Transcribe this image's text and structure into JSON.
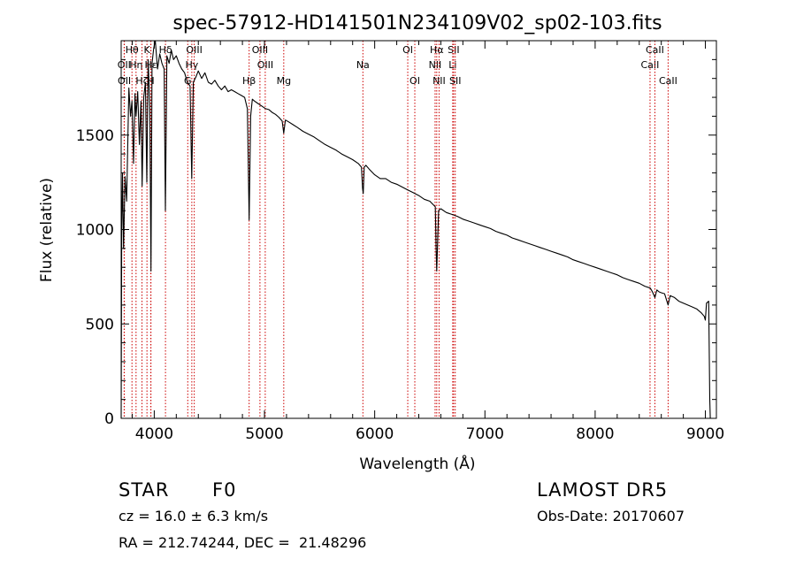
{
  "chart_data": {
    "type": "line",
    "title": "spec-57912-HD141501N234109V02_sp02-103.fits",
    "xlabel": "Wavelength (Å)",
    "ylabel": "Flux (relative)",
    "xlim": [
      3700,
      9100
    ],
    "ylim": [
      0,
      2000
    ],
    "xticks": [
      4000,
      5000,
      6000,
      7000,
      8000,
      9000
    ],
    "xtick_labels": [
      "4000",
      "5000",
      "6000",
      "7000",
      "8000",
      "9000"
    ],
    "yticks": [
      0,
      500,
      1000,
      1500
    ],
    "ytick_labels": [
      "0",
      "500",
      "1000",
      "1500"
    ],
    "grid": false,
    "line_color": "#000000",
    "marker_color": "#cc0000",
    "series": [
      {
        "points": [
          [
            3700,
            0
          ],
          [
            3705,
            1000
          ],
          [
            3712,
            1300
          ],
          [
            3722,
            900
          ],
          [
            3735,
            1280
          ],
          [
            3750,
            1150
          ],
          [
            3770,
            1750
          ],
          [
            3785,
            1600
          ],
          [
            3798,
            1680
          ],
          [
            3812,
            1350
          ],
          [
            3825,
            1720
          ],
          [
            3835,
            1600
          ],
          [
            3850,
            1730
          ],
          [
            3865,
            1450
          ],
          [
            3880,
            1680
          ],
          [
            3890,
            1230
          ],
          [
            3905,
            1700
          ],
          [
            3920,
            1780
          ],
          [
            3933,
            1250
          ],
          [
            3945,
            1900
          ],
          [
            3960,
            1650
          ],
          [
            3970,
            780
          ],
          [
            3980,
            1880
          ],
          [
            3995,
            1960
          ],
          [
            4010,
            2000
          ],
          [
            4030,
            1850
          ],
          [
            4050,
            1930
          ],
          [
            4070,
            1880
          ],
          [
            4090,
            1850
          ],
          [
            4101,
            1100
          ],
          [
            4115,
            1920
          ],
          [
            4135,
            1880
          ],
          [
            4155,
            1950
          ],
          [
            4175,
            1900
          ],
          [
            4200,
            1920
          ],
          [
            4225,
            1880
          ],
          [
            4250,
            1850
          ],
          [
            4275,
            1830
          ],
          [
            4300,
            1780
          ],
          [
            4325,
            1760
          ],
          [
            4340,
            1270
          ],
          [
            4355,
            1780
          ],
          [
            4380,
            1810
          ],
          [
            4400,
            1840
          ],
          [
            4430,
            1800
          ],
          [
            4460,
            1830
          ],
          [
            4490,
            1780
          ],
          [
            4520,
            1770
          ],
          [
            4550,
            1790
          ],
          [
            4580,
            1760
          ],
          [
            4610,
            1740
          ],
          [
            4640,
            1760
          ],
          [
            4670,
            1730
          ],
          [
            4700,
            1740
          ],
          [
            4730,
            1730
          ],
          [
            4760,
            1720
          ],
          [
            4790,
            1710
          ],
          [
            4820,
            1700
          ],
          [
            4845,
            1640
          ],
          [
            4861,
            1050
          ],
          [
            4875,
            1600
          ],
          [
            4890,
            1690
          ],
          [
            4910,
            1680
          ],
          [
            4935,
            1670
          ],
          [
            4960,
            1660
          ],
          [
            4985,
            1650
          ],
          [
            5010,
            1640
          ],
          [
            5040,
            1635
          ],
          [
            5070,
            1620
          ],
          [
            5100,
            1610
          ],
          [
            5130,
            1595
          ],
          [
            5160,
            1575
          ],
          [
            5175,
            1510
          ],
          [
            5190,
            1580
          ],
          [
            5220,
            1570
          ],
          [
            5260,
            1555
          ],
          [
            5300,
            1540
          ],
          [
            5350,
            1520
          ],
          [
            5400,
            1505
          ],
          [
            5450,
            1490
          ],
          [
            5500,
            1470
          ],
          [
            5550,
            1450
          ],
          [
            5600,
            1435
          ],
          [
            5650,
            1420
          ],
          [
            5700,
            1400
          ],
          [
            5750,
            1385
          ],
          [
            5800,
            1370
          ],
          [
            5850,
            1350
          ],
          [
            5880,
            1330
          ],
          [
            5890,
            1220
          ],
          [
            5896,
            1190
          ],
          [
            5905,
            1330
          ],
          [
            5920,
            1340
          ],
          [
            5950,
            1320
          ],
          [
            6000,
            1290
          ],
          [
            6050,
            1270
          ],
          [
            6100,
            1270
          ],
          [
            6150,
            1250
          ],
          [
            6200,
            1240
          ],
          [
            6250,
            1225
          ],
          [
            6300,
            1210
          ],
          [
            6350,
            1195
          ],
          [
            6400,
            1180
          ],
          [
            6450,
            1160
          ],
          [
            6500,
            1150
          ],
          [
            6550,
            1120
          ],
          [
            6557,
            900
          ],
          [
            6563,
            780
          ],
          [
            6569,
            900
          ],
          [
            6580,
            1100
          ],
          [
            6600,
            1110
          ],
          [
            6650,
            1090
          ],
          [
            6700,
            1080
          ],
          [
            6750,
            1070
          ],
          [
            6800,
            1055
          ],
          [
            6850,
            1045
          ],
          [
            6900,
            1035
          ],
          [
            6950,
            1025
          ],
          [
            7000,
            1015
          ],
          [
            7050,
            1005
          ],
          [
            7100,
            990
          ],
          [
            7150,
            980
          ],
          [
            7200,
            970
          ],
          [
            7250,
            955
          ],
          [
            7300,
            945
          ],
          [
            7350,
            935
          ],
          [
            7400,
            925
          ],
          [
            7450,
            915
          ],
          [
            7500,
            905
          ],
          [
            7550,
            895
          ],
          [
            7600,
            885
          ],
          [
            7650,
            875
          ],
          [
            7700,
            865
          ],
          [
            7750,
            855
          ],
          [
            7800,
            840
          ],
          [
            7850,
            830
          ],
          [
            7900,
            820
          ],
          [
            7950,
            810
          ],
          [
            8000,
            800
          ],
          [
            8050,
            790
          ],
          [
            8100,
            780
          ],
          [
            8150,
            770
          ],
          [
            8200,
            760
          ],
          [
            8250,
            745
          ],
          [
            8300,
            735
          ],
          [
            8350,
            725
          ],
          [
            8400,
            715
          ],
          [
            8450,
            700
          ],
          [
            8500,
            690
          ],
          [
            8520,
            670
          ],
          [
            8542,
            640
          ],
          [
            8560,
            680
          ],
          [
            8580,
            670
          ],
          [
            8600,
            665
          ],
          [
            8630,
            660
          ],
          [
            8662,
            600
          ],
          [
            8680,
            650
          ],
          [
            8720,
            640
          ],
          [
            8760,
            620
          ],
          [
            8800,
            610
          ],
          [
            8840,
            600
          ],
          [
            8880,
            590
          ],
          [
            8920,
            580
          ],
          [
            8960,
            560
          ],
          [
            8990,
            540
          ],
          [
            9000,
            520
          ],
          [
            9010,
            610
          ],
          [
            9030,
            620
          ],
          [
            9040,
            100
          ],
          [
            9045,
            0
          ]
        ]
      }
    ],
    "line_markers": [
      {
        "label": "Hθ",
        "wavelength": 3798,
        "row": 1
      },
      {
        "label": "OII",
        "wavelength": 3727,
        "row": 2
      },
      {
        "label": "OII",
        "wavelength": 3729,
        "row": 3
      },
      {
        "label": "Hη",
        "wavelength": 3835,
        "row": 2
      },
      {
        "label": "Hζ",
        "wavelength": 3889,
        "row": 3
      },
      {
        "label": "K",
        "wavelength": 3934,
        "row": 1
      },
      {
        "label": "H",
        "wavelength": 3969,
        "row": 3
      },
      {
        "label": "Hε",
        "wavelength": 3970,
        "row": 2
      },
      {
        "label": "Hδ",
        "wavelength": 4102,
        "row": 1
      },
      {
        "label": "G",
        "wavelength": 4304,
        "row": 3
      },
      {
        "label": "Hγ",
        "wavelength": 4341,
        "row": 2
      },
      {
        "label": "OIII",
        "wavelength": 4363,
        "row": 1
      },
      {
        "label": "Hβ",
        "wavelength": 4861,
        "row": 3
      },
      {
        "label": "OIII",
        "wavelength": 4959,
        "row": 1
      },
      {
        "label": "OIII",
        "wavelength": 5007,
        "row": 2
      },
      {
        "label": "Mg",
        "wavelength": 5175,
        "row": 3
      },
      {
        "label": "Na",
        "wavelength": 5893,
        "row": 2
      },
      {
        "label": "OI",
        "wavelength": 6300,
        "row": 1
      },
      {
        "label": "OI",
        "wavelength": 6364,
        "row": 3
      },
      {
        "label": "NII",
        "wavelength": 6548,
        "row": 2
      },
      {
        "label": "NII",
        "wavelength": 6584,
        "row": 3
      },
      {
        "label": "Hα",
        "wavelength": 6563,
        "row": 1
      },
      {
        "label": "SII",
        "wavelength": 6716,
        "row": 1
      },
      {
        "label": "Li",
        "wavelength": 6708,
        "row": 2
      },
      {
        "label": "SII",
        "wavelength": 6731,
        "row": 3
      },
      {
        "label": "CaII",
        "wavelength": 8498,
        "row": 2
      },
      {
        "label": "CaII",
        "wavelength": 8542,
        "row": 1
      },
      {
        "label": "CaII",
        "wavelength": 8662,
        "row": 3
      }
    ]
  },
  "info": {
    "object_class": "STAR",
    "subclass": "F0",
    "survey": "LAMOST DR5",
    "redshift": "cz = 16.0 ± 6.3 km/s",
    "obs_date": "Obs-Date: 20170607",
    "coords": "RA = 212.74244, DEC =  21.48296"
  }
}
